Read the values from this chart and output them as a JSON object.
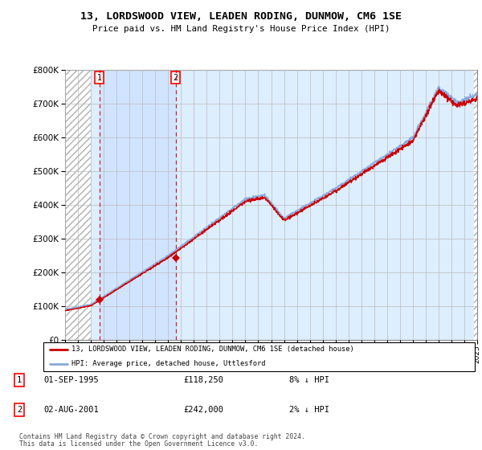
{
  "title": "13, LORDSWOOD VIEW, LEADEN RODING, DUNMOW, CM6 1SE",
  "subtitle": "Price paid vs. HM Land Registry's House Price Index (HPI)",
  "ylim": [
    0,
    800000
  ],
  "yticks": [
    0,
    100000,
    200000,
    300000,
    400000,
    500000,
    600000,
    700000,
    800000
  ],
  "x_start_year": 1993,
  "x_end_year": 2025,
  "hpi_color": "#88aadd",
  "price_color": "#cc0000",
  "marker_color": "#cc0000",
  "sale1_year": 1995.67,
  "sale1_price": 118250,
  "sale1_label": "1",
  "sale1_date": "01-SEP-1995",
  "sale1_amount": "£118,250",
  "sale1_hpi": "8% ↓ HPI",
  "sale2_year": 2001.58,
  "sale2_price": 242000,
  "sale2_label": "2",
  "sale2_date": "02-AUG-2001",
  "sale2_amount": "£242,000",
  "sale2_hpi": "2% ↓ HPI",
  "legend_line1": "13, LORDSWOOD VIEW, LEADEN RODING, DUNMOW, CM6 1SE (detached house)",
  "legend_line2": "HPI: Average price, detached house, Uttlesford",
  "footnote1": "Contains HM Land Registry data © Crown copyright and database right 2024.",
  "footnote2": "This data is licensed under the Open Government Licence v3.0.",
  "bg_color": "#ddeeff",
  "hatch_bg": "#e8e8e8",
  "grid_color": "#bbbbbb",
  "highlight_color": "#cce0ff"
}
